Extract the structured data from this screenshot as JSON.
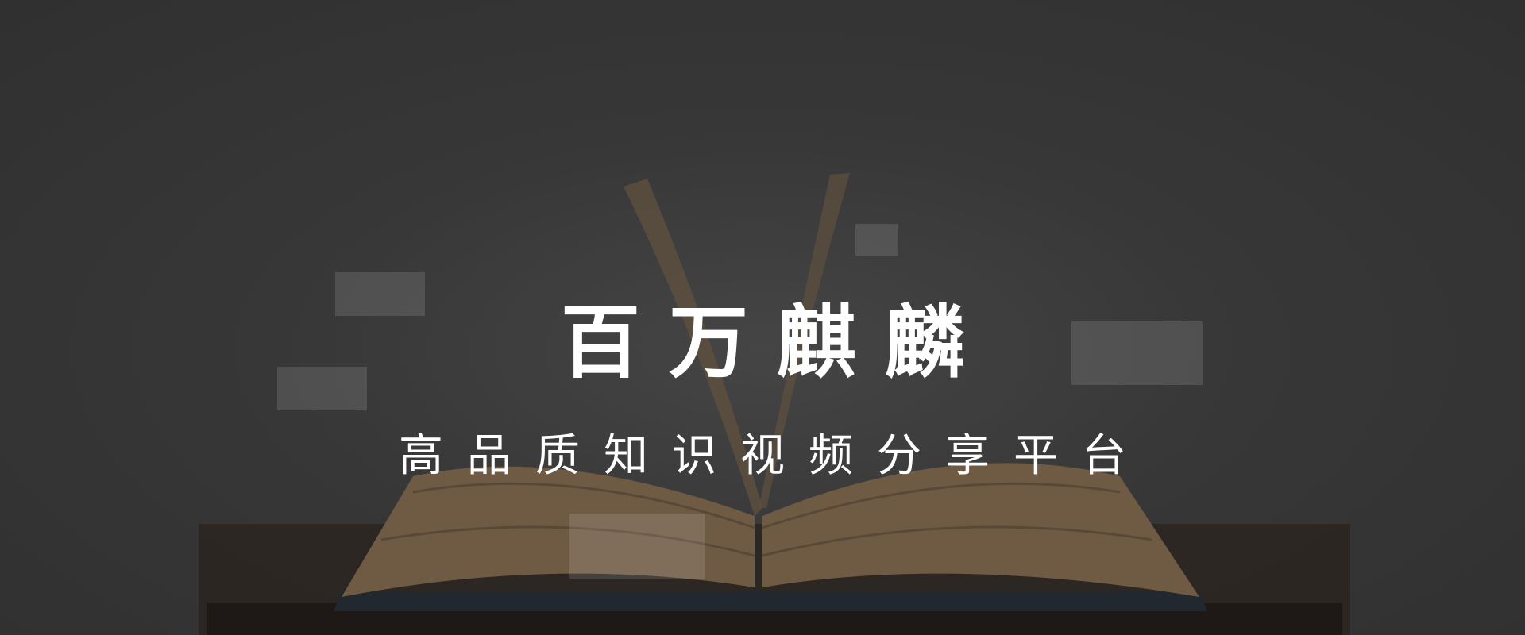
{
  "hero": {
    "title": "百万麒麟",
    "subtitle": "高品质知识视频分享平台",
    "image_name": "open-book-photo"
  },
  "colors": {
    "background": "#3b3b3b",
    "text": "#ffffff",
    "book_pages": "#8a7256",
    "table": "#2b2420"
  }
}
